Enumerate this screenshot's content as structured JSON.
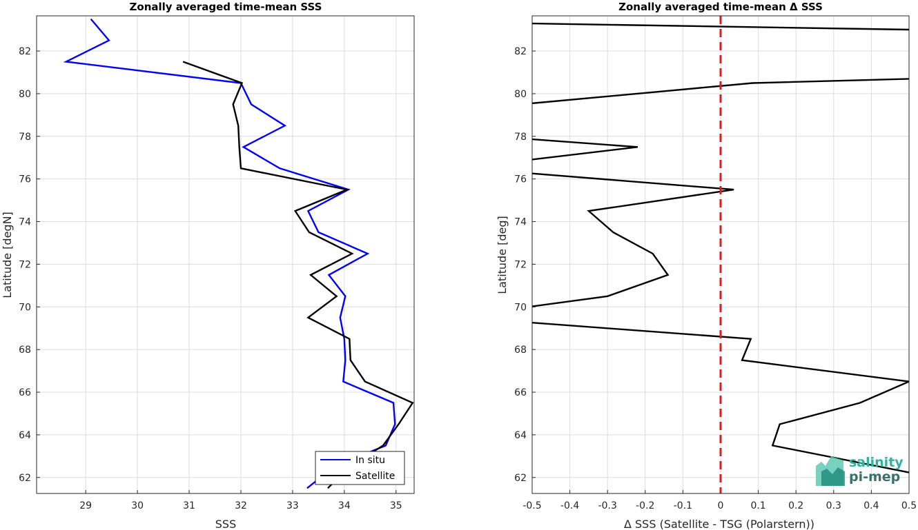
{
  "chart_data": [
    {
      "type": "line",
      "title": "Zonally averaged time-mean SSS",
      "xlabel": "SSS",
      "ylabel": "Latitude [degN]",
      "xlim": [
        28.05,
        35.35
      ],
      "ylim": [
        61.25,
        83.65
      ],
      "xticks": [
        29,
        30,
        31,
        32,
        33,
        34,
        35
      ],
      "yticks": [
        62,
        64,
        66,
        68,
        70,
        72,
        74,
        76,
        78,
        80,
        82
      ],
      "grid": true,
      "legend": {
        "position": "bottom-right",
        "entries": [
          "In situ",
          "Satellite"
        ]
      },
      "series": [
        {
          "name": "In situ",
          "color": "#0000ff",
          "points": [
            [
              29.1,
              83.5
            ],
            [
              29.45,
              82.5
            ],
            [
              28.62,
              81.5
            ],
            [
              32.0,
              80.5
            ],
            [
              32.2,
              79.5
            ],
            [
              32.85,
              78.5
            ],
            [
              32.05,
              77.5
            ],
            [
              32.75,
              76.5
            ],
            [
              34.08,
              75.5
            ],
            [
              33.3,
              74.5
            ],
            [
              33.5,
              73.5
            ],
            [
              34.45,
              72.5
            ],
            [
              33.7,
              71.5
            ],
            [
              34.02,
              70.5
            ],
            [
              33.92,
              69.5
            ],
            [
              34.0,
              68.5
            ],
            [
              34.02,
              67.5
            ],
            [
              33.98,
              66.5
            ],
            [
              34.95,
              65.5
            ],
            [
              34.98,
              64.5
            ],
            [
              34.8,
              63.5
            ],
            [
              33.8,
              62.5
            ],
            [
              33.28,
              61.5
            ]
          ]
        },
        {
          "name": "Satellite",
          "color": "#000000",
          "points": [
            [
              30.88,
              81.5
            ],
            [
              32.02,
              80.5
            ],
            [
              31.85,
              79.5
            ],
            [
              31.95,
              78.5
            ],
            [
              31.97,
              77.5
            ],
            [
              32.0,
              76.5
            ],
            [
              34.05,
              75.5
            ],
            [
              33.05,
              74.5
            ],
            [
              33.32,
              73.5
            ],
            [
              34.15,
              72.5
            ],
            [
              33.35,
              71.5
            ],
            [
              33.85,
              70.5
            ],
            [
              33.3,
              69.5
            ],
            [
              34.1,
              68.5
            ],
            [
              34.12,
              67.5
            ],
            [
              34.4,
              66.5
            ],
            [
              35.32,
              65.5
            ],
            [
              35.05,
              64.5
            ],
            [
              34.75,
              63.5
            ],
            [
              34.1,
              62.5
            ],
            [
              33.68,
              61.5
            ]
          ]
        }
      ]
    },
    {
      "type": "line",
      "title": "Zonally averaged time-mean Δ SSS",
      "xlabel": "Δ SSS (Satellite - TSG (Polarstern))",
      "ylabel": "Latitude [deg]",
      "xlim": [
        -0.5,
        0.5
      ],
      "ylim": [
        61.25,
        83.65
      ],
      "xticks": [
        -0.5,
        -0.4,
        -0.3,
        -0.2,
        -0.1,
        0,
        0.1,
        0.2,
        0.3,
        0.4,
        0.5
      ],
      "xticklabels": [
        "-0.5",
        "-0.4",
        "-0.3",
        "-0.2",
        "-0.1",
        "0",
        "0.1",
        "0.2",
        "0.3",
        "0.4",
        "0.5"
      ],
      "yticks": [
        62,
        64,
        66,
        68,
        70,
        72,
        74,
        76,
        78,
        80,
        82
      ],
      "grid": true,
      "reference_line": {
        "x": 0,
        "color": "#e41a1c",
        "style": "dashed"
      },
      "series": [
        {
          "color": "#000000",
          "points": [
            [
              -0.53,
              83.3
            ],
            [
              0.51,
              83.0
            ]
          ]
        },
        {
          "color": "#000000",
          "points": [
            [
              -0.53,
              79.5
            ],
            [
              0.085,
              80.5
            ],
            [
              0.51,
              80.7
            ]
          ]
        },
        {
          "color": "#000000",
          "points": [
            [
              -0.53,
              77.9
            ],
            [
              -0.22,
              77.5
            ],
            [
              -0.53,
              76.85
            ]
          ]
        },
        {
          "color": "#000000",
          "points": [
            [
              -0.53,
              76.3
            ],
            [
              0.035,
              75.5
            ],
            [
              -0.35,
              74.5
            ],
            [
              -0.285,
              73.5
            ],
            [
              -0.18,
              72.5
            ],
            [
              -0.14,
              71.5
            ],
            [
              -0.3,
              70.5
            ],
            [
              -0.53,
              69.95
            ]
          ]
        },
        {
          "color": "#000000",
          "points": [
            [
              -0.53,
              69.3
            ],
            [
              0.08,
              68.5
            ],
            [
              0.057,
              67.5
            ],
            [
              0.5,
              66.5
            ],
            [
              0.37,
              65.5
            ],
            [
              0.157,
              64.5
            ],
            [
              0.138,
              63.5
            ],
            [
              0.51,
              62.2
            ]
          ]
        }
      ]
    }
  ],
  "logo": {
    "line1": "salinity",
    "line2": "pi-mep"
  }
}
